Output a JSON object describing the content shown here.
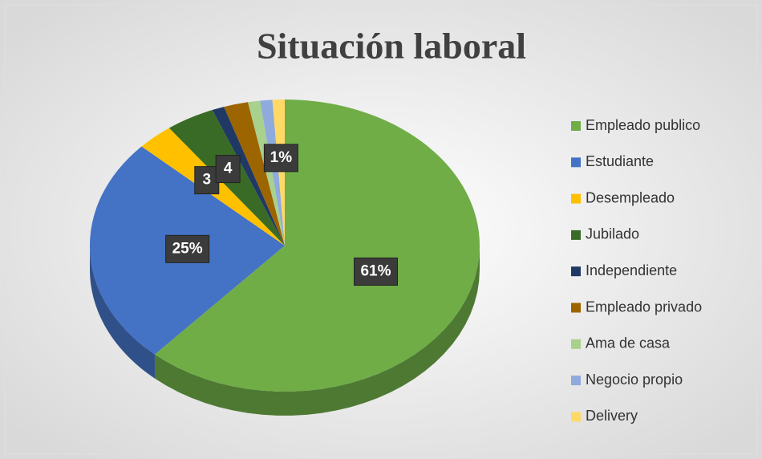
{
  "chart_data": {
    "type": "pie",
    "title": "Situación laboral",
    "categories": [
      "Empleado publico",
      "Estudiante",
      "Desempleado",
      "Jubilado",
      "Independiente",
      "Empleado privado",
      "Ama de casa",
      "Negocio propio",
      "Delivery"
    ],
    "values": [
      61,
      25,
      3,
      4,
      1,
      2,
      1,
      1,
      1
    ],
    "value_labels": [
      "61%",
      "25%",
      "3",
      "4",
      null,
      null,
      null,
      null,
      "1%"
    ],
    "colors": [
      "#70ad47",
      "#4472c4",
      "#ffc000",
      "#3a6b26",
      "#203864",
      "#9c6500",
      "#a9d18e",
      "#8faadc",
      "#ffd966"
    ],
    "legend": "right"
  }
}
